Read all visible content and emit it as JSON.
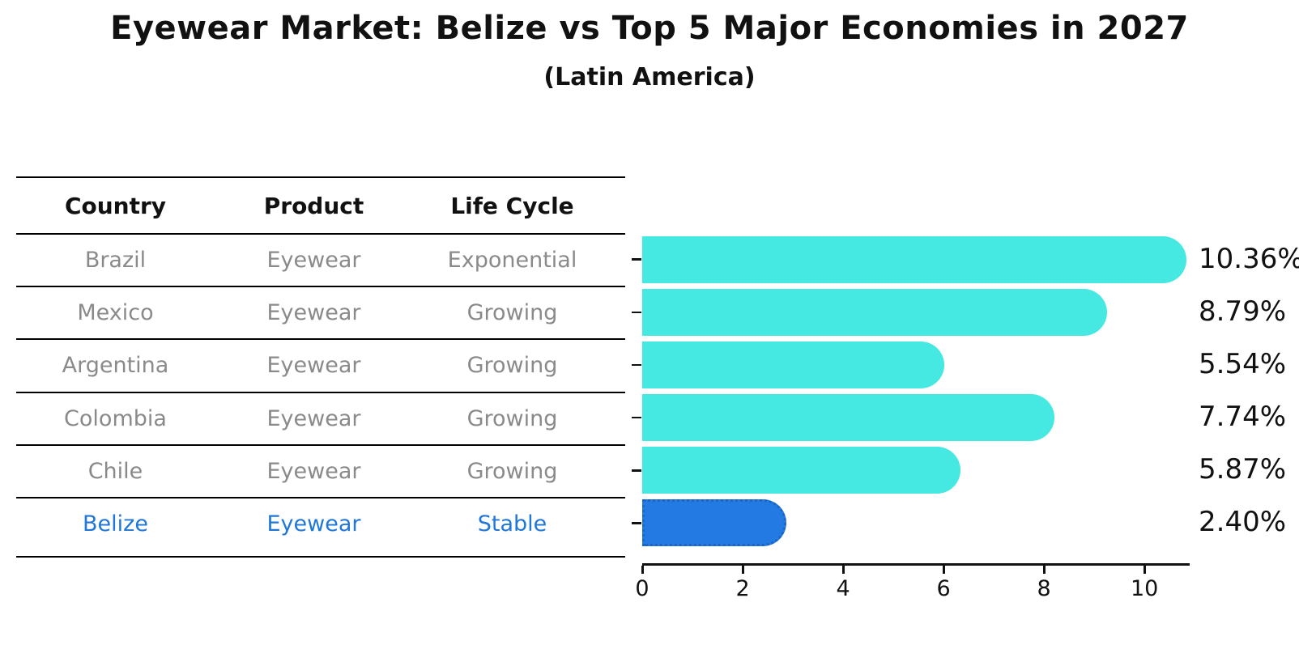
{
  "title": "Eyewear Market: Belize vs Top 5 Major Economies in 2027",
  "subtitle": "(Latin America)",
  "table": {
    "headers": [
      "Country",
      "Product",
      "Life Cycle"
    ],
    "rows": [
      {
        "country": "Brazil",
        "product": "Eyewear",
        "life_cycle": "Exponential",
        "highlight": false
      },
      {
        "country": "Mexico",
        "product": "Eyewear",
        "life_cycle": "Growing",
        "highlight": false
      },
      {
        "country": "Argentina",
        "product": "Eyewear",
        "life_cycle": "Growing",
        "highlight": false
      },
      {
        "country": "Colombia",
        "product": "Eyewear",
        "life_cycle": "Growing",
        "highlight": false
      },
      {
        "country": "Chile",
        "product": "Eyewear",
        "life_cycle": "Growing",
        "highlight": false
      },
      {
        "country": "Belize",
        "product": "Eyewear",
        "life_cycle": "Stable",
        "highlight": true
      }
    ]
  },
  "chart_data": {
    "type": "bar",
    "orientation": "horizontal",
    "title": "Eyewear Market: Belize vs Top 5 Major Economies in 2027",
    "subtitle": "(Latin America)",
    "categories": [
      "Brazil",
      "Mexico",
      "Argentina",
      "Colombia",
      "Chile",
      "Belize"
    ],
    "values": [
      10.36,
      8.79,
      5.54,
      7.74,
      5.87,
      2.4
    ],
    "value_labels": [
      "10.36%",
      "8.79%",
      "5.54%",
      "7.74%",
      "5.87%",
      "2.40%"
    ],
    "x_ticks": [
      "0",
      "2",
      "4",
      "6",
      "8",
      "10"
    ],
    "x_tick_values": [
      0,
      2,
      4,
      6,
      8,
      10
    ],
    "xlim": [
      0,
      10.9
    ],
    "grid": false,
    "legend": "none",
    "xlabel": "",
    "ylabel": "",
    "highlight_index": 5
  },
  "colors": {
    "bar": "#46e8e2",
    "highlight_bar": "#227ae2",
    "highlight_text": "#1f77d9",
    "body_text": "#8a8a8a",
    "header_text": "#111111",
    "axis": "#111111"
  }
}
